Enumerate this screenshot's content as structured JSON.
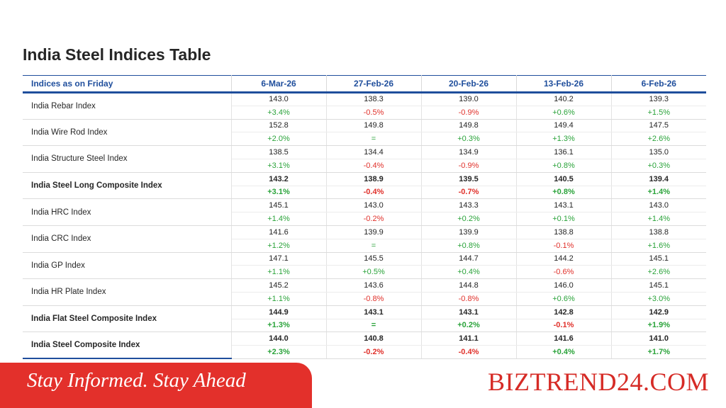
{
  "title": "India Steel Indices Table",
  "header": {
    "label": "Indices as on Friday",
    "dates": [
      "6-Mar-26",
      "27-Feb-26",
      "20-Feb-26",
      "13-Feb-26",
      "6-Feb-26"
    ]
  },
  "rows": [
    {
      "name": "India Rebar Index",
      "bold": false,
      "values": [
        "143.0",
        "138.3",
        "139.0",
        "140.2",
        "139.3"
      ],
      "changes": [
        "+3.4%",
        "-0.5%",
        "-0.9%",
        "+0.6%",
        "+1.5%"
      ]
    },
    {
      "name": "India Wire Rod Index",
      "bold": false,
      "values": [
        "152.8",
        "149.8",
        "149.8",
        "149.4",
        "147.5"
      ],
      "changes": [
        "+2.0%",
        "=",
        "+0.3%",
        "+1.3%",
        "+2.6%"
      ]
    },
    {
      "name": "India Structure Steel Index",
      "bold": false,
      "values": [
        "138.5",
        "134.4",
        "134.9",
        "136.1",
        "135.0"
      ],
      "changes": [
        "+3.1%",
        "-0.4%",
        "-0.9%",
        "+0.8%",
        "+0.3%"
      ]
    },
    {
      "name": "India Steel Long Composite Index",
      "bold": true,
      "values": [
        "143.2",
        "138.9",
        "139.5",
        "140.5",
        "139.4"
      ],
      "changes": [
        "+3.1%",
        "-0.4%",
        "-0.7%",
        "+0.8%",
        "+1.4%"
      ]
    },
    {
      "name": "India HRC Index",
      "bold": false,
      "values": [
        "145.1",
        "143.0",
        "143.3",
        "143.1",
        "143.0"
      ],
      "changes": [
        "+1.4%",
        "-0.2%",
        "+0.2%",
        "+0.1%",
        "+1.4%"
      ]
    },
    {
      "name": "India CRC Index",
      "bold": false,
      "values": [
        "141.6",
        "139.9",
        "139.9",
        "138.8",
        "138.8"
      ],
      "changes": [
        "+1.2%",
        "=",
        "+0.8%",
        "-0.1%",
        "+1.6%"
      ]
    },
    {
      "name": "India GP Index",
      "bold": false,
      "values": [
        "147.1",
        "145.5",
        "144.7",
        "144.2",
        "145.1"
      ],
      "changes": [
        "+1.1%",
        "+0.5%",
        "+0.4%",
        "-0.6%",
        "+2.6%"
      ]
    },
    {
      "name": "India HR Plate Index",
      "bold": false,
      "values": [
        "145.2",
        "143.6",
        "144.8",
        "146.0",
        "145.1"
      ],
      "changes": [
        "+1.1%",
        "-0.8%",
        "-0.8%",
        "+0.6%",
        "+3.0%"
      ]
    },
    {
      "name": "India Flat Steel Composite Index",
      "bold": true,
      "values": [
        "144.9",
        "143.1",
        "143.1",
        "142.8",
        "142.9"
      ],
      "changes": [
        "+1.3%",
        "=",
        "+0.2%",
        "-0.1%",
        "+1.9%"
      ]
    },
    {
      "name": "India Steel Composite Index",
      "bold": true,
      "values": [
        "144.0",
        "140.8",
        "141.1",
        "141.6",
        "141.0"
      ],
      "changes": [
        "+2.3%",
        "-0.2%",
        "-0.4%",
        "+0.4%",
        "+1.7%"
      ]
    }
  ],
  "banner": {
    "tagline": "Stay Informed. Stay Ahead",
    "brand": "BIZTREND24.COM"
  },
  "colors": {
    "header_blue": "#1f4e9c",
    "positive": "#2aa33a",
    "negative": "#e0302a",
    "banner_red": "#e3302b",
    "brand_red": "#d62b26"
  }
}
